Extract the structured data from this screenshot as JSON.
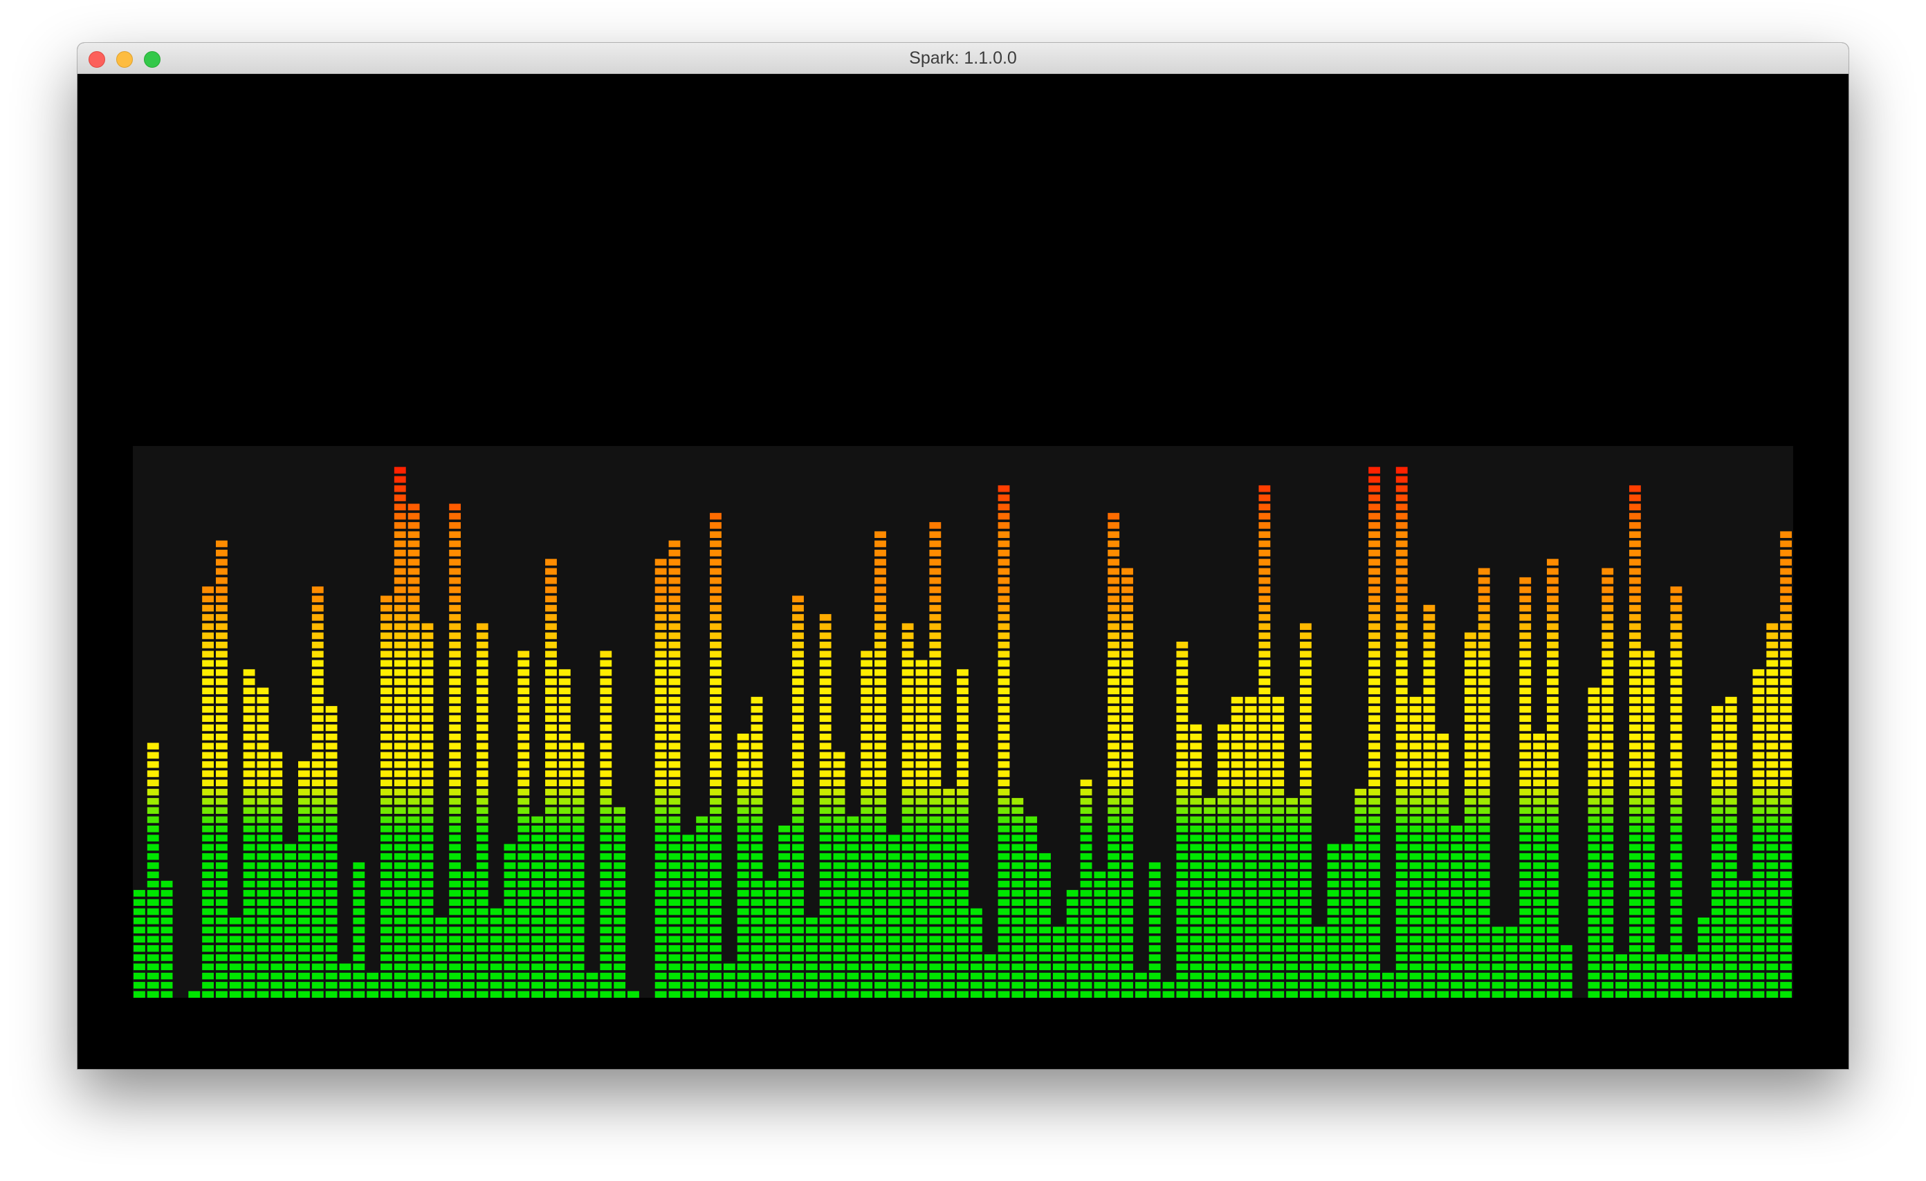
{
  "window": {
    "title": "Spark: 1.1.0.0"
  },
  "visualizer": {
    "background": "#000000",
    "panel_color": "#121212",
    "colors": {
      "low": "#00e600",
      "mid": "#ffee00",
      "high": "#ff8c00",
      "peak": "#ff2200"
    }
  },
  "chart_data": {
    "type": "bar",
    "ylim": [
      0,
      58
    ],
    "values": [
      12,
      28,
      13,
      0,
      1,
      45,
      50,
      9,
      36,
      34,
      27,
      17,
      26,
      45,
      32,
      4,
      15,
      3,
      44,
      58,
      54,
      41,
      9,
      54,
      14,
      41,
      10,
      17,
      38,
      20,
      48,
      36,
      28,
      3,
      38,
      21,
      1,
      0,
      48,
      50,
      18,
      20,
      53,
      4,
      29,
      33,
      13,
      19,
      44,
      9,
      42,
      27,
      20,
      38,
      51,
      18,
      41,
      37,
      52,
      23,
      36,
      10,
      5,
      56,
      22,
      20,
      16,
      8,
      12,
      24,
      14,
      53,
      47,
      3,
      15,
      2,
      39,
      30,
      22,
      30,
      33,
      33,
      56,
      33,
      22,
      41,
      8,
      17,
      17,
      23,
      58,
      3,
      58,
      33,
      43,
      29,
      19,
      40,
      47,
      8,
      8,
      46,
      29,
      48,
      6,
      0,
      34,
      47,
      5,
      56,
      38,
      5,
      45,
      5,
      9,
      32,
      33,
      13,
      36,
      41,
      51
    ]
  }
}
